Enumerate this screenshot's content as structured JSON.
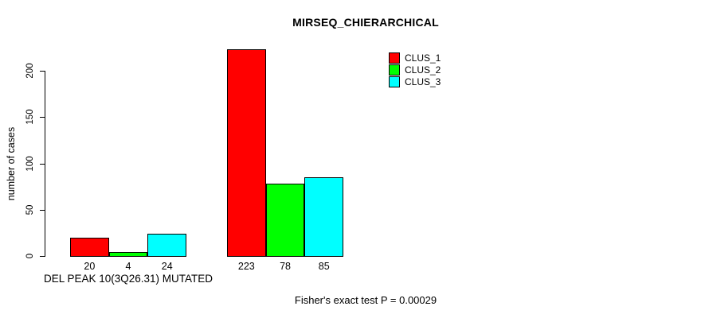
{
  "title": "MIRSEQ_CHIERARCHICAL",
  "footer": "Fisher's exact test P = 0.00029",
  "y_axis": {
    "label": "number of cases",
    "ticks": [
      "0",
      "50",
      "100",
      "150",
      "200"
    ]
  },
  "x_axis": {
    "group_label": "DEL PEAK 10(3Q26.31) MUTATED"
  },
  "legend": {
    "items": [
      {
        "label": "CLUS_1",
        "color": "#ff0000"
      },
      {
        "label": "CLUS_2",
        "color": "#00ff00"
      },
      {
        "label": "CLUS_3",
        "color": "#00ffff"
      }
    ]
  },
  "chart_data": {
    "type": "bar",
    "title": "MIRSEQ_CHIERARCHICAL",
    "xlabel": "DEL PEAK 10(3Q26.31) MUTATED",
    "ylabel": "number of cases",
    "ylim": [
      0,
      230
    ],
    "yticks": [
      0,
      50,
      100,
      150,
      200
    ],
    "grid": false,
    "legend_position": "top-right",
    "bar_outline_color": "#000000",
    "groups": [
      "DEL PEAK 10(3Q26.31) MUTATED",
      ""
    ],
    "series": [
      {
        "name": "CLUS_1",
        "color": "#ff0000",
        "values": [
          20,
          223
        ]
      },
      {
        "name": "CLUS_2",
        "color": "#00ff00",
        "values": [
          4,
          78
        ]
      },
      {
        "name": "CLUS_3",
        "color": "#00ffff",
        "values": [
          24,
          85
        ]
      }
    ],
    "bar_labels": [
      [
        20,
        4,
        24
      ],
      [
        223,
        78,
        85
      ]
    ],
    "annotation": "Fisher's exact test P = 0.00029"
  }
}
